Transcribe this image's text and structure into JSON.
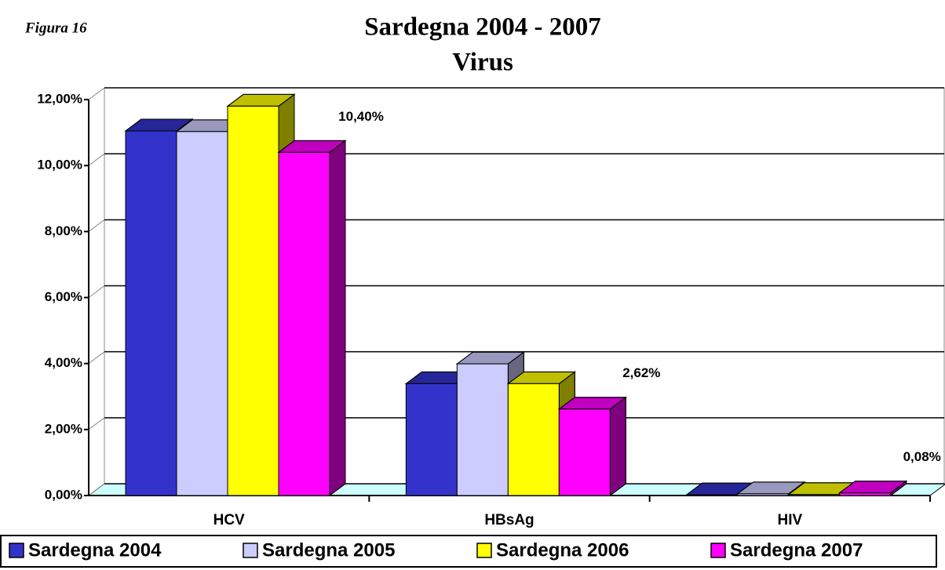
{
  "chart_data": {
    "type": "bar3d",
    "caption": "Figura 16",
    "title": "Sardegna 2004 - 2007",
    "subtitle": "Virus",
    "categories": [
      "HCV",
      "HBsAg",
      "HIV"
    ],
    "series": [
      {
        "name": "Sardegna 2004",
        "color": "#3333cc",
        "values": [
          11.05,
          3.39,
          0.02
        ]
      },
      {
        "name": "Sardegna 2005",
        "color": "#ccccff",
        "values": [
          11.03,
          3.99,
          0.05
        ]
      },
      {
        "name": "Sardegna 2006",
        "color": "#ffff00",
        "values": [
          11.8,
          3.39,
          0.03
        ]
      },
      {
        "name": "Sardegna 2007",
        "color": "#ff00ff",
        "values": [
          10.4,
          2.62,
          0.08
        ],
        "value_labels": [
          "10,40%",
          "2,62%",
          "0,08%"
        ]
      }
    ],
    "ylim": [
      0,
      12
    ],
    "yticks": [
      {
        "value": 0,
        "label": "0,00%"
      },
      {
        "value": 2,
        "label": "2,00%"
      },
      {
        "value": 4,
        "label": "4,00%"
      },
      {
        "value": 6,
        "label": "6,00%"
      },
      {
        "value": 8,
        "label": "8,00%"
      },
      {
        "value": 10,
        "label": "10,00%"
      },
      {
        "value": 12,
        "label": "12,00%"
      }
    ],
    "grid": true,
    "floor_color": "#ccffff"
  }
}
